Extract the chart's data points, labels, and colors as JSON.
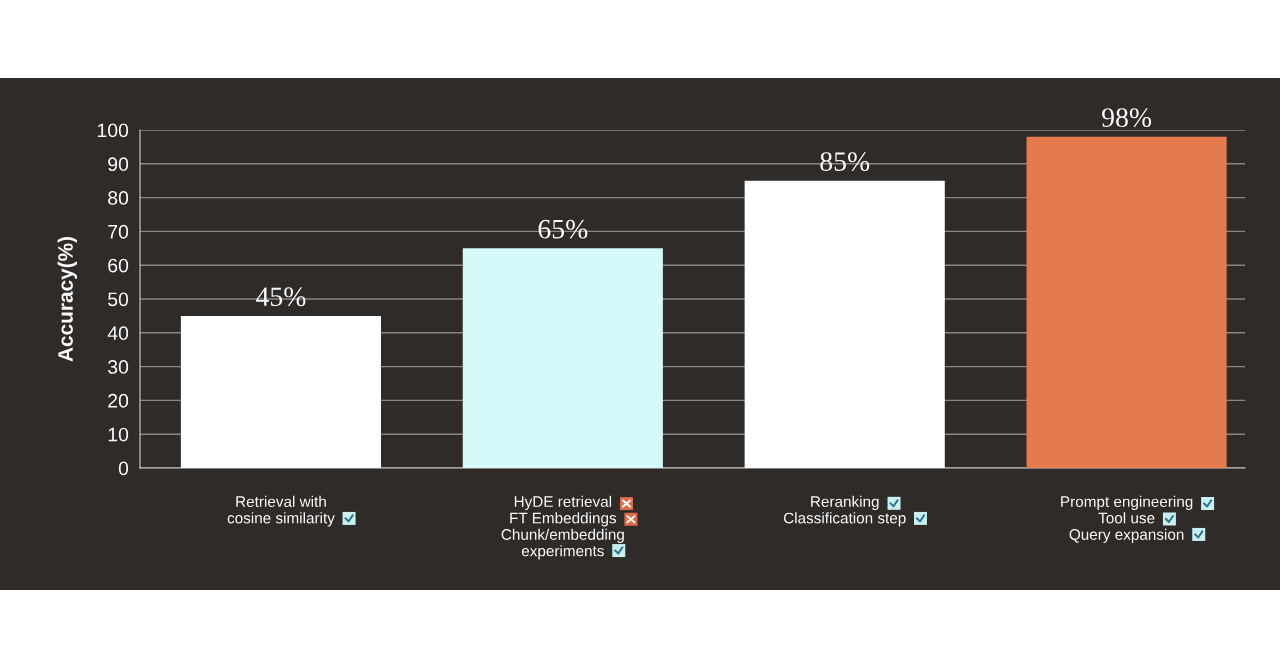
{
  "chart_data": {
    "type": "bar",
    "ylabel": "Accuracy(%)",
    "categories": [
      "Retrieval with\ncosine similarity",
      "HyDE retrieval\nFT Embeddings\nChunk/embedding\nexperiments",
      "Reranking\nClassification step",
      "Prompt engineering\nTool use\nQuery expansion"
    ],
    "values": [
      45,
      65,
      85,
      98
    ],
    "colors": [
      "#ffffff",
      "#d6fafa",
      "#ffffff",
      "#e57a4c"
    ],
    "value_labels": [
      "45%",
      "65%",
      "85%",
      "98%"
    ],
    "ylim": [
      0,
      100
    ],
    "yticks": [
      0,
      10,
      20,
      30,
      40,
      50,
      60,
      70,
      80,
      90,
      100
    ],
    "grid": "y"
  }
}
